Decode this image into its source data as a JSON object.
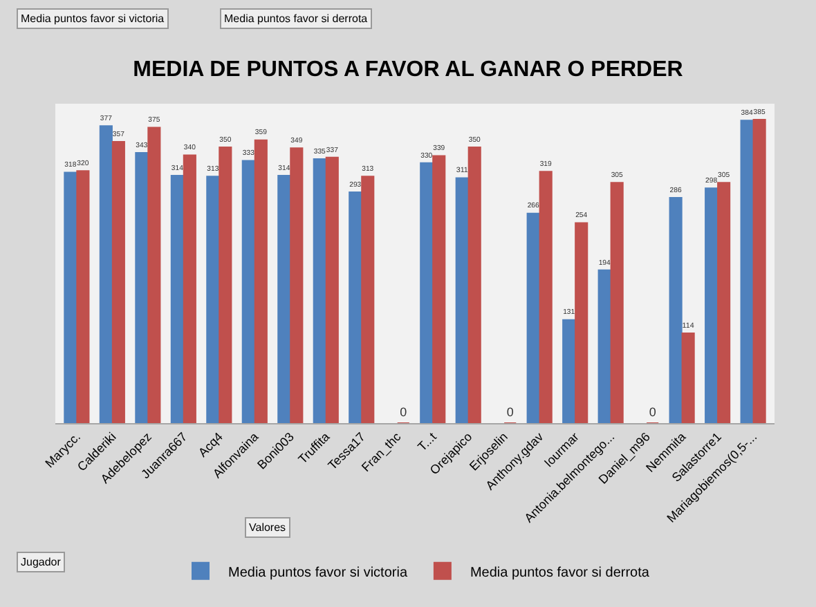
{
  "chart_data": {
    "type": "bar",
    "title": "MEDIA DE PUNTOS A FAVOR AL GANAR O PERDER",
    "categories": [
      "Marycc.",
      "Calderiki",
      "Adebelopez",
      "Juanra667",
      "Acq4",
      "Alfonvaina",
      "Boni003",
      "Truffita",
      "Tessa17",
      "Fran_thc",
      "T...t",
      "Orejapico",
      "Erjoselin",
      "Anthony.gdav",
      "Iourmar",
      "Antonia.belmontego...",
      "Daniel_m96",
      "Nemmita",
      "Salastorre1",
      "Mariagobiemos(0,5-..."
    ],
    "series": [
      {
        "name": "Media puntos favor si victoria",
        "color": "#4f81bd",
        "values": [
          318,
          377,
          343,
          314,
          313,
          333,
          314,
          335,
          293,
          null,
          330,
          311,
          null,
          266,
          131,
          194,
          null,
          286,
          298,
          384
        ]
      },
      {
        "name": "Media puntos favor si derrota",
        "color": "#c0504d",
        "values": [
          320,
          357,
          375,
          340,
          350,
          359,
          349,
          337,
          313,
          0,
          339,
          350,
          0,
          319,
          254,
          305,
          0,
          114,
          305,
          385
        ]
      }
    ],
    "data_labels": true,
    "legend": "bottom",
    "grid": false,
    "annotations": [
      "Media puntos favor si victoria",
      "Media puntos favor si derrota",
      "Valores",
      "Jugador"
    ]
  }
}
